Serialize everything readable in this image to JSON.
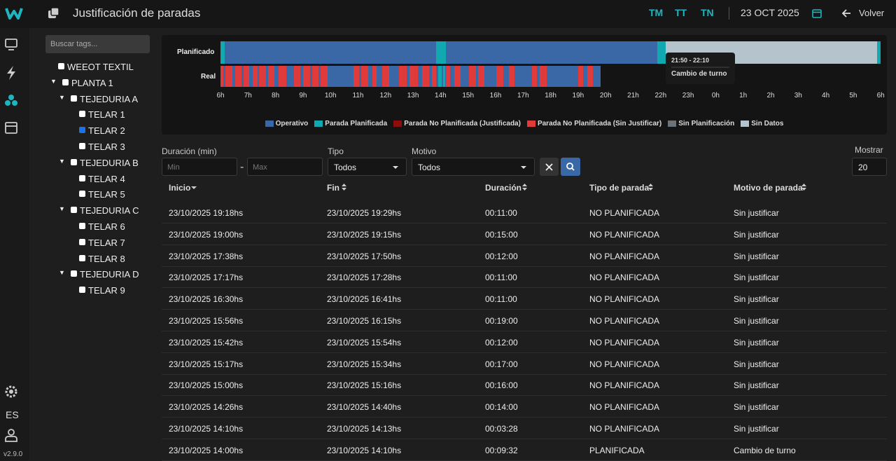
{
  "header": {
    "title": "Justificación de paradas",
    "shifts": [
      "TM",
      "TT",
      "TN"
    ],
    "date": "23 OCT 2025",
    "back": "Volver"
  },
  "sidebar": {
    "language": "ES",
    "version": "v2.9.0"
  },
  "tree": {
    "search_placeholder": "Buscar tags...",
    "nodes": [
      {
        "label": "WEEOT TEXTIL",
        "level": 0,
        "expandable": false,
        "checked": false
      },
      {
        "label": "PLANTA 1",
        "level": 1,
        "expandable": true,
        "checked": false
      },
      {
        "label": "TEJEDURIA A",
        "level": 2,
        "expandable": true,
        "checked": false
      },
      {
        "label": "TELAR 1",
        "level": 3,
        "expandable": false,
        "checked": false
      },
      {
        "label": "TELAR 2",
        "level": 3,
        "expandable": false,
        "checked": true
      },
      {
        "label": "TELAR 3",
        "level": 3,
        "expandable": false,
        "checked": false
      },
      {
        "label": "TEJEDURIA B",
        "level": 2,
        "expandable": true,
        "checked": false
      },
      {
        "label": "TELAR 4",
        "level": 3,
        "expandable": false,
        "checked": false
      },
      {
        "label": "TELAR 5",
        "level": 3,
        "expandable": false,
        "checked": false
      },
      {
        "label": "TEJEDURIA C",
        "level": 2,
        "expandable": true,
        "checked": false
      },
      {
        "label": "TELAR 6",
        "level": 3,
        "expandable": false,
        "checked": false
      },
      {
        "label": "TELAR 7",
        "level": 3,
        "expandable": false,
        "checked": false
      },
      {
        "label": "TELAR 8",
        "level": 3,
        "expandable": false,
        "checked": false
      },
      {
        "label": "TEJEDURIA D",
        "level": 2,
        "expandable": true,
        "checked": false
      },
      {
        "label": "TELAR 9",
        "level": 3,
        "expandable": false,
        "checked": false
      }
    ]
  },
  "timeline": {
    "rows": [
      "Planificado",
      "Real"
    ],
    "hours": [
      "6h",
      "7h",
      "8h",
      "9h",
      "10h",
      "11h",
      "12h",
      "13h",
      "14h",
      "15h",
      "16h",
      "17h",
      "18h",
      "19h",
      "20h",
      "21h",
      "22h",
      "23h",
      "0h",
      "1h",
      "2h",
      "3h",
      "4h",
      "5h",
      "6h"
    ],
    "tooltip": {
      "time": "21:50 - 22:10",
      "label": "Cambio de turno"
    },
    "legend": [
      {
        "name": "Operativo",
        "color": "#3a68a6"
      },
      {
        "name": "Parada Planificada",
        "color": "#12a8b0"
      },
      {
        "name": "Parada No Planificada (Justificada)",
        "color": "#8b0d0d"
      },
      {
        "name": "Parada No Planificada (Sin Justificar)",
        "color": "#e03a3a"
      },
      {
        "name": "Sin Planificación",
        "color": "#6b7278"
      },
      {
        "name": "Sin Datos",
        "color": "#b5c3cc"
      }
    ]
  },
  "filters": {
    "duration_label": "Duración (min)",
    "min_placeholder": "Min",
    "max_placeholder": "Max",
    "type_label": "Tipo",
    "type_value": "Todos",
    "reason_label": "Motivo",
    "reason_value": "Todos",
    "show_label": "Mostrar",
    "show_value": 20
  },
  "table": {
    "columns": [
      "Inicio",
      "Fin",
      "Duración",
      "Tipo de parada",
      "Motivo de parada"
    ],
    "rows": [
      [
        "23/10/2025 19:18hs",
        "23/10/2025 19:29hs",
        "00:11:00",
        "NO PLANIFICADA",
        "Sin justificar"
      ],
      [
        "23/10/2025 19:00hs",
        "23/10/2025 19:15hs",
        "00:15:00",
        "NO PLANIFICADA",
        "Sin justificar"
      ],
      [
        "23/10/2025 17:38hs",
        "23/10/2025 17:50hs",
        "00:12:00",
        "NO PLANIFICADA",
        "Sin justificar"
      ],
      [
        "23/10/2025 17:17hs",
        "23/10/2025 17:28hs",
        "00:11:00",
        "NO PLANIFICADA",
        "Sin justificar"
      ],
      [
        "23/10/2025 16:30hs",
        "23/10/2025 16:41hs",
        "00:11:00",
        "NO PLANIFICADA",
        "Sin justificar"
      ],
      [
        "23/10/2025 15:56hs",
        "23/10/2025 16:15hs",
        "00:19:00",
        "NO PLANIFICADA",
        "Sin justificar"
      ],
      [
        "23/10/2025 15:42hs",
        "23/10/2025 15:54hs",
        "00:12:00",
        "NO PLANIFICADA",
        "Sin justificar"
      ],
      [
        "23/10/2025 15:17hs",
        "23/10/2025 15:34hs",
        "00:17:00",
        "NO PLANIFICADA",
        "Sin justificar"
      ],
      [
        "23/10/2025 15:00hs",
        "23/10/2025 15:16hs",
        "00:16:00",
        "NO PLANIFICADA",
        "Sin justificar"
      ],
      [
        "23/10/2025 14:26hs",
        "23/10/2025 14:40hs",
        "00:14:00",
        "NO PLANIFICADA",
        "Sin justificar"
      ],
      [
        "23/10/2025 14:10hs",
        "23/10/2025 14:13hs",
        "00:03:28",
        "NO PLANIFICADA",
        "Sin justificar"
      ],
      [
        "23/10/2025 14:00hs",
        "23/10/2025 14:10hs",
        "00:09:32",
        "PLANIFICADA",
        "Cambio de turno"
      ]
    ]
  }
}
